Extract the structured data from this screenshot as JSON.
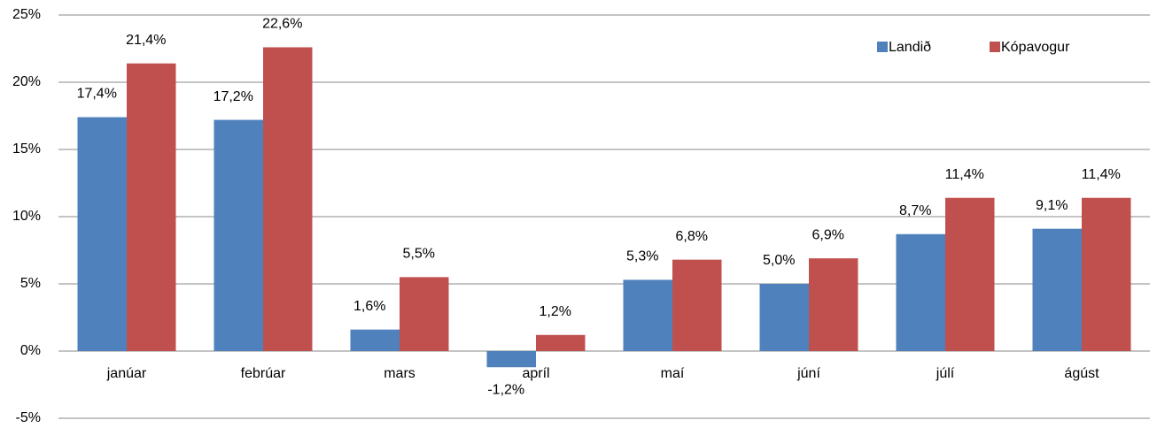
{
  "chart_data": {
    "type": "bar",
    "categories": [
      "janúar",
      "febrúar",
      "mars",
      "apríl",
      "maí",
      "júní",
      "júlí",
      "ágúst"
    ],
    "series": [
      {
        "name": "Landið",
        "color": "#4f81bd",
        "values": [
          17.4,
          17.2,
          1.6,
          -1.2,
          5.3,
          5.0,
          8.7,
          9.1
        ],
        "value_labels": [
          "17,4%",
          "17,2%",
          "1,6%",
          "-1,2%",
          "5,3%",
          "5,0%",
          "8,7%",
          "9,1%"
        ]
      },
      {
        "name": "Kópavogur",
        "color": "#c0504d",
        "values": [
          21.4,
          22.6,
          5.5,
          1.2,
          6.8,
          6.9,
          11.4,
          11.4
        ],
        "value_labels": [
          "21,4%",
          "22,6%",
          "5,5%",
          "1,2%",
          "6,8%",
          "6,9%",
          "11,4%",
          "11,4%"
        ]
      }
    ],
    "ylim": [
      -5,
      25
    ],
    "yticks": [
      {
        "value": -5,
        "label": "-5%"
      },
      {
        "value": 0,
        "label": "0%"
      },
      {
        "value": 5,
        "label": "5%"
      },
      {
        "value": 10,
        "label": "10%"
      },
      {
        "value": 15,
        "label": "15%"
      },
      {
        "value": 20,
        "label": "20%"
      },
      {
        "value": 25,
        "label": "25%"
      }
    ],
    "grid": true,
    "legend": "upper right"
  }
}
